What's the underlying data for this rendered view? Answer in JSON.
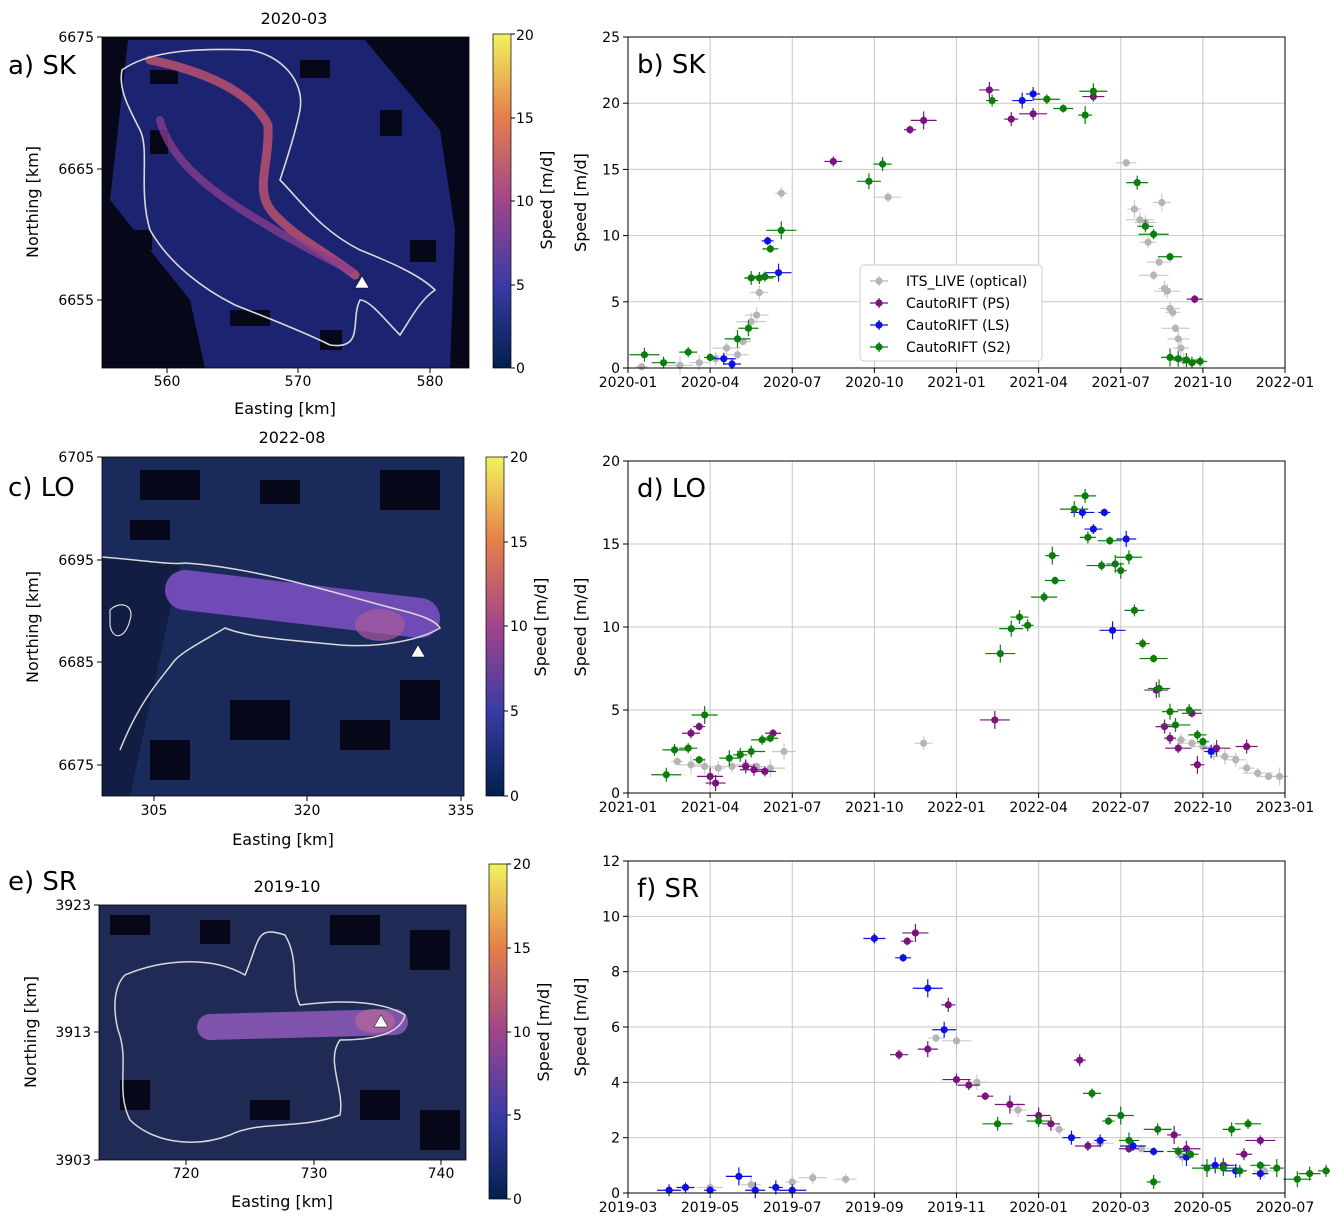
{
  "colors": {
    "its_live": "#b5b5b5",
    "ps": "#7a137e",
    "ls": "#0f10e6",
    "s2": "#0b7d0b",
    "outline": "#d9d9d9",
    "marker": "#ffffff"
  },
  "map_panels": [
    {
      "panel_label": "a) SK",
      "title": "2020-03",
      "xlabel": "Easting [km]",
      "ylabel": "Northing [km]",
      "cbar_label": "Speed [m/d]",
      "xticks": [
        "560",
        "570",
        "580"
      ],
      "yticks": [
        "6675",
        "6665",
        "6655"
      ],
      "cbar_ticks": [
        "20",
        "15",
        "10",
        "5",
        "0"
      ]
    },
    {
      "panel_label": "c) LO",
      "title": "2022-08",
      "xlabel": "Easting [km]",
      "ylabel": "Northing [km]",
      "cbar_label": "Speed [m/d]",
      "xticks": [
        "305",
        "320",
        "335"
      ],
      "yticks": [
        "6705",
        "6695",
        "6685",
        "6675"
      ],
      "cbar_ticks": [
        "20",
        "15",
        "10",
        "5",
        "0"
      ]
    },
    {
      "panel_label": "e) SR",
      "title": "2019-10",
      "xlabel": "Easting [km]",
      "ylabel": "Northing [km]",
      "cbar_label": "Speed [m/d]",
      "xticks": [
        "720",
        "730",
        "740"
      ],
      "yticks": [
        "3923",
        "3913",
        "3903"
      ],
      "cbar_ticks": [
        "20",
        "15",
        "10",
        "5",
        "0"
      ]
    }
  ],
  "legend": [
    "ITS_LIVE (optical)",
    "CautoRIFT (PS)",
    "CautoRIFT (LS)",
    "CautoRIFT (S2)"
  ],
  "chart_data": [
    {
      "type": "scatter",
      "panel_label": "b) SK",
      "ylabel": "Speed [m/d]",
      "ylim": [
        0,
        25
      ],
      "grid": true,
      "legend_placement": "lower-center",
      "xticks": [
        "2020-01",
        "2020-04",
        "2020-07",
        "2020-10",
        "2021-01",
        "2021-04",
        "2021-07",
        "2021-10",
        "2022-01"
      ],
      "yticks": [
        "0",
        "5",
        "10",
        "15",
        "20",
        "25"
      ],
      "series": [
        {
          "name": "ITS_LIVE (optical)",
          "color": "#b5b5b5",
          "points": [
            [
              0.5,
              0.1
            ],
            [
              1.9,
              0.2
            ],
            [
              2.6,
              0.4
            ],
            [
              3.2,
              0.7
            ],
            [
              3.6,
              1.5
            ],
            [
              4.0,
              1.0
            ],
            [
              4.2,
              2.0
            ],
            [
              4.5,
              3.5
            ],
            [
              4.7,
              4.0
            ],
            [
              4.8,
              5.7
            ],
            [
              5.6,
              13.2
            ],
            [
              9.5,
              12.9
            ],
            [
              18.2,
              15.5
            ],
            [
              18.5,
              12.0
            ],
            [
              18.7,
              11.2
            ],
            [
              18.9,
              11.0
            ],
            [
              19.0,
              9.5
            ],
            [
              19.2,
              7.0
            ],
            [
              19.4,
              8.0
            ],
            [
              19.5,
              12.5
            ],
            [
              19.6,
              6.0
            ],
            [
              19.7,
              5.8
            ],
            [
              19.8,
              4.5
            ],
            [
              19.9,
              4.2
            ],
            [
              20.0,
              3.0
            ],
            [
              20.1,
              2.2
            ],
            [
              20.2,
              1.5
            ],
            [
              20.3,
              0.6
            ]
          ]
        },
        {
          "name": "CautoRIFT (PS)",
          "color": "#7a137e",
          "points": [
            [
              7.5,
              15.6
            ],
            [
              10.3,
              18.0
            ],
            [
              10.8,
              18.7
            ],
            [
              13.2,
              21.0
            ],
            [
              14.0,
              18.8
            ],
            [
              14.8,
              19.2
            ],
            [
              17.0,
              20.5
            ],
            [
              20.7,
              5.2
            ]
          ]
        },
        {
          "name": "CautoRIFT (LS)",
          "color": "#0f10e6",
          "points": [
            [
              3.5,
              0.7
            ],
            [
              3.8,
              0.3
            ],
            [
              5.1,
              9.6
            ],
            [
              5.5,
              7.2
            ],
            [
              14.4,
              20.2
            ],
            [
              14.8,
              20.7
            ]
          ]
        },
        {
          "name": "CautoRIFT (S2)",
          "color": "#0b7d0b",
          "points": [
            [
              0.6,
              1.0
            ],
            [
              1.3,
              0.4
            ],
            [
              2.2,
              1.2
            ],
            [
              3.0,
              0.8
            ],
            [
              4.0,
              2.2
            ],
            [
              4.4,
              3.0
            ],
            [
              4.5,
              6.8
            ],
            [
              4.8,
              6.8
            ],
            [
              5.0,
              6.9
            ],
            [
              5.2,
              9.0
            ],
            [
              5.6,
              10.4
            ],
            [
              8.8,
              14.1
            ],
            [
              9.3,
              15.4
            ],
            [
              13.3,
              20.2
            ],
            [
              15.3,
              20.3
            ],
            [
              15.9,
              19.6
            ],
            [
              16.7,
              19.1
            ],
            [
              17.0,
              20.9
            ],
            [
              18.6,
              14.0
            ],
            [
              18.9,
              10.7
            ],
            [
              19.2,
              10.1
            ],
            [
              19.8,
              8.4
            ],
            [
              19.8,
              0.8
            ],
            [
              20.1,
              0.7
            ],
            [
              20.4,
              0.6
            ],
            [
              20.6,
              0.4
            ],
            [
              20.9,
              0.5
            ]
          ]
        }
      ]
    },
    {
      "type": "scatter",
      "panel_label": "d) LO",
      "ylabel": "Speed [m/d]",
      "ylim": [
        0,
        20
      ],
      "grid": true,
      "xticks": [
        "2021-01",
        "2021-04",
        "2021-07",
        "2021-10",
        "2022-01",
        "2022-04",
        "2022-07",
        "2022-10",
        "2023-01"
      ],
      "yticks": [
        "0",
        "5",
        "10",
        "15",
        "20"
      ],
      "series": [
        {
          "name": "ITS_LIVE (optical)",
          "color": "#b5b5b5",
          "points": [
            [
              1.8,
              1.9
            ],
            [
              2.3,
              1.7
            ],
            [
              2.8,
              1.6
            ],
            [
              3.3,
              1.5
            ],
            [
              3.8,
              1.6
            ],
            [
              4.3,
              1.7
            ],
            [
              4.7,
              1.6
            ],
            [
              5.2,
              1.5
            ],
            [
              5.7,
              2.5
            ],
            [
              10.8,
              3.0
            ],
            [
              20.2,
              3.2
            ],
            [
              20.6,
              3.0
            ],
            [
              21.0,
              2.8
            ],
            [
              21.4,
              2.5
            ],
            [
              21.8,
              2.2
            ],
            [
              22.2,
              2.0
            ],
            [
              22.6,
              1.5
            ],
            [
              23.0,
              1.2
            ],
            [
              23.4,
              1.0
            ],
            [
              23.8,
              1.0
            ]
          ]
        },
        {
          "name": "CautoRIFT (PS)",
          "color": "#7a137e",
          "points": [
            [
              2.3,
              3.6
            ],
            [
              2.6,
              4.0
            ],
            [
              3.0,
              1.0
            ],
            [
              3.2,
              0.6
            ],
            [
              4.3,
              1.6
            ],
            [
              4.6,
              1.4
            ],
            [
              5.0,
              1.3
            ],
            [
              5.3,
              3.6
            ],
            [
              13.4,
              4.4
            ],
            [
              19.3,
              6.2
            ],
            [
              19.6,
              4.0
            ],
            [
              19.8,
              3.3
            ],
            [
              20.1,
              2.7
            ],
            [
              20.6,
              4.8
            ],
            [
              20.8,
              1.7
            ],
            [
              21.5,
              2.7
            ],
            [
              22.6,
              2.8
            ]
          ]
        },
        {
          "name": "CautoRIFT (LS)",
          "color": "#0f10e6",
          "points": [
            [
              16.6,
              16.9
            ],
            [
              17.0,
              15.9
            ],
            [
              17.4,
              16.9
            ],
            [
              17.7,
              9.8
            ],
            [
              18.2,
              15.3
            ],
            [
              21.3,
              2.5
            ]
          ]
        },
        {
          "name": "CautoRIFT (S2)",
          "color": "#0b7d0b",
          "points": [
            [
              1.4,
              1.1
            ],
            [
              1.7,
              2.6
            ],
            [
              2.2,
              2.7
            ],
            [
              2.6,
              2.0
            ],
            [
              2.8,
              4.7
            ],
            [
              3.7,
              2.1
            ],
            [
              4.1,
              2.3
            ],
            [
              4.5,
              2.5
            ],
            [
              4.9,
              3.2
            ],
            [
              5.2,
              3.3
            ],
            [
              13.6,
              8.4
            ],
            [
              14.0,
              9.9
            ],
            [
              14.3,
              10.6
            ],
            [
              14.6,
              10.1
            ],
            [
              15.2,
              11.8
            ],
            [
              15.6,
              12.8
            ],
            [
              15.5,
              14.3
            ],
            [
              16.3,
              17.1
            ],
            [
              16.7,
              17.9
            ],
            [
              16.8,
              15.4
            ],
            [
              17.3,
              13.7
            ],
            [
              17.6,
              15.2
            ],
            [
              17.8,
              13.8
            ],
            [
              18.0,
              13.4
            ],
            [
              18.3,
              14.2
            ],
            [
              18.5,
              11.0
            ],
            [
              18.8,
              9.0
            ],
            [
              19.2,
              8.1
            ],
            [
              19.4,
              6.3
            ],
            [
              19.8,
              4.9
            ],
            [
              20.0,
              4.1
            ],
            [
              20.5,
              5.0
            ],
            [
              20.8,
              3.5
            ],
            [
              21.0,
              3.1
            ]
          ]
        }
      ]
    },
    {
      "type": "scatter",
      "panel_label": "f) SR",
      "ylabel": "Speed [m/d]",
      "ylim": [
        0,
        12
      ],
      "grid": true,
      "xticks": [
        "2019-03",
        "2019-05",
        "2019-07",
        "2019-09",
        "2019-11",
        "2020-01",
        "2020-03",
        "2020-05",
        "2020-07"
      ],
      "yticks": [
        "0",
        "2",
        "4",
        "6",
        "8",
        "10",
        "12"
      ],
      "series": [
        {
          "name": "ITS_LIVE (optical)",
          "color": "#b5b5b5",
          "points": [
            [
              1.0,
              0.1
            ],
            [
              2.0,
              0.2
            ],
            [
              3.0,
              0.3
            ],
            [
              4.0,
              0.4
            ],
            [
              4.5,
              0.55
            ],
            [
              5.3,
              0.5
            ],
            [
              7.5,
              5.6
            ],
            [
              8.0,
              5.5
            ],
            [
              8.5,
              4.0
            ],
            [
              9.5,
              3.0
            ],
            [
              10.5,
              2.3
            ],
            [
              11.5,
              1.8
            ],
            [
              12.5,
              1.6
            ],
            [
              13.5,
              1.3
            ],
            [
              14.5,
              1.0
            ],
            [
              15.5,
              0.8
            ]
          ]
        },
        {
          "name": "CautoRIFT (PS)",
          "color": "#7a137e",
          "points": [
            [
              6.6,
              5.0
            ],
            [
              6.8,
              9.1
            ],
            [
              7.0,
              9.4
            ],
            [
              7.3,
              5.2
            ],
            [
              7.8,
              6.8
            ],
            [
              8.0,
              4.1
            ],
            [
              8.3,
              3.9
            ],
            [
              8.7,
              3.5
            ],
            [
              9.3,
              3.2
            ],
            [
              10.0,
              2.8
            ],
            [
              10.3,
              2.5
            ],
            [
              11.0,
              4.8
            ],
            [
              11.2,
              1.7
            ],
            [
              12.2,
              1.6
            ],
            [
              13.3,
              2.1
            ],
            [
              13.6,
              1.6
            ],
            [
              14.5,
              1.0
            ],
            [
              15.0,
              1.4
            ],
            [
              15.4,
              1.9
            ]
          ]
        },
        {
          "name": "CautoRIFT (LS)",
          "color": "#0f10e6",
          "points": [
            [
              1.0,
              0.1
            ],
            [
              1.4,
              0.2
            ],
            [
              2.0,
              0.1
            ],
            [
              2.7,
              0.6
            ],
            [
              3.1,
              0.1
            ],
            [
              3.6,
              0.2
            ],
            [
              4.0,
              0.1
            ],
            [
              6.0,
              9.2
            ],
            [
              6.7,
              8.5
            ],
            [
              7.3,
              7.4
            ],
            [
              7.7,
              5.9
            ],
            [
              10.8,
              2.0
            ],
            [
              11.5,
              1.9
            ],
            [
              12.3,
              1.7
            ],
            [
              12.8,
              1.5
            ],
            [
              13.6,
              1.3
            ],
            [
              14.3,
              1.0
            ],
            [
              14.8,
              0.8
            ],
            [
              15.4,
              0.7
            ]
          ]
        },
        {
          "name": "CautoRIFT (S2)",
          "color": "#0b7d0b",
          "points": [
            [
              9.0,
              2.5
            ],
            [
              10.0,
              2.6
            ],
            [
              11.3,
              3.6
            ],
            [
              11.7,
              2.6
            ],
            [
              12.0,
              2.8
            ],
            [
              12.2,
              1.9
            ],
            [
              12.8,
              0.4
            ],
            [
              12.9,
              2.3
            ],
            [
              13.4,
              1.5
            ],
            [
              13.7,
              1.4
            ],
            [
              14.1,
              0.9
            ],
            [
              14.5,
              0.9
            ],
            [
              14.7,
              2.3
            ],
            [
              14.9,
              0.8
            ],
            [
              15.1,
              2.5
            ],
            [
              15.4,
              1.0
            ],
            [
              15.8,
              0.9
            ],
            [
              16.3,
              0.5
            ],
            [
              16.6,
              0.7
            ],
            [
              17.0,
              0.8
            ]
          ]
        }
      ]
    }
  ]
}
